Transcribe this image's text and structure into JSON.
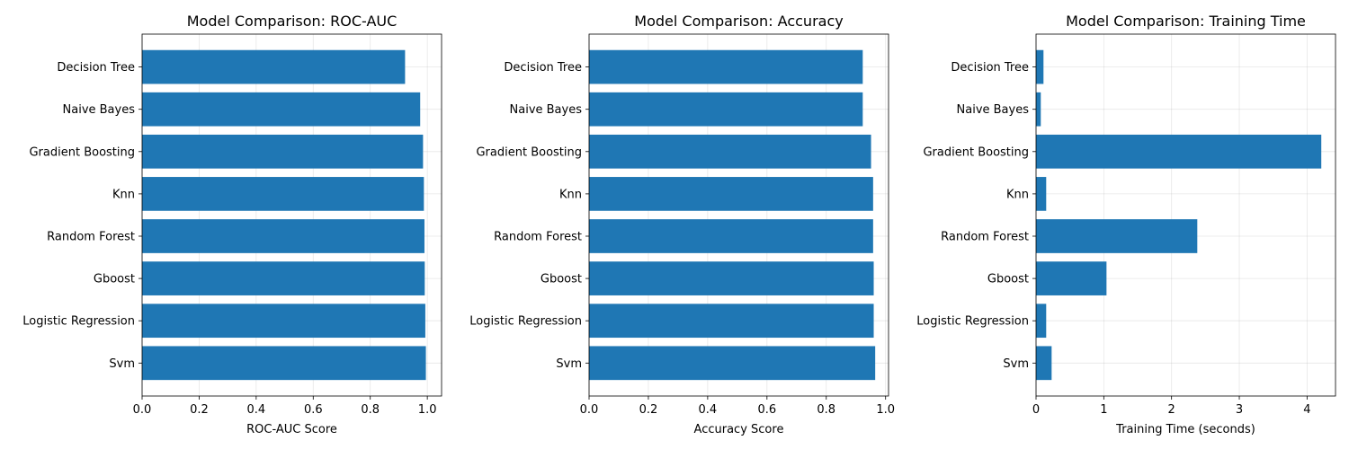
{
  "chart_data": [
    {
      "type": "bar",
      "orientation": "horizontal",
      "title": "Model Comparison: ROC-AUC",
      "xlabel": "ROC-AUC Score",
      "ylabel": "",
      "xlim": [
        0,
        1.05
      ],
      "xticks": [
        "0.0",
        "0.2",
        "0.4",
        "0.6",
        "0.8",
        "1.0"
      ],
      "grid": true,
      "color": "#1f77b4",
      "categories": [
        "Decision Tree",
        "Naive Bayes",
        "Gradient Boosting",
        "Knn",
        "Random Forest",
        "Gboost",
        "Logistic Regression",
        "Svm"
      ],
      "values": [
        0.922,
        0.975,
        0.985,
        0.988,
        0.99,
        0.991,
        0.993,
        0.995
      ]
    },
    {
      "type": "bar",
      "orientation": "horizontal",
      "title": "Model Comparison: Accuracy",
      "xlabel": "Accuracy Score",
      "ylabel": "",
      "xlim": [
        0,
        1.01
      ],
      "xticks": [
        "0.0",
        "0.2",
        "0.4",
        "0.6",
        "0.8",
        "1.0"
      ],
      "grid": true,
      "color": "#1f77b4",
      "categories": [
        "Decision Tree",
        "Naive Bayes",
        "Gradient Boosting",
        "Knn",
        "Random Forest",
        "Gboost",
        "Logistic Regression",
        "Svm"
      ],
      "values": [
        0.923,
        0.923,
        0.951,
        0.958,
        0.958,
        0.96,
        0.96,
        0.965
      ]
    },
    {
      "type": "bar",
      "orientation": "horizontal",
      "title": "Model Comparison: Training Time",
      "xlabel": "Training Time (seconds)",
      "ylabel": "",
      "xlim": [
        0,
        4.42
      ],
      "xticks": [
        "0",
        "1",
        "2",
        "3",
        "4"
      ],
      "grid": true,
      "color": "#1f77b4",
      "categories": [
        "Decision Tree",
        "Naive Bayes",
        "Gradient Boosting",
        "Knn",
        "Random Forest",
        "Gboost",
        "Logistic Regression",
        "Svm"
      ],
      "values": [
        0.11,
        0.07,
        4.21,
        0.15,
        2.38,
        1.04,
        0.15,
        0.23
      ]
    }
  ]
}
